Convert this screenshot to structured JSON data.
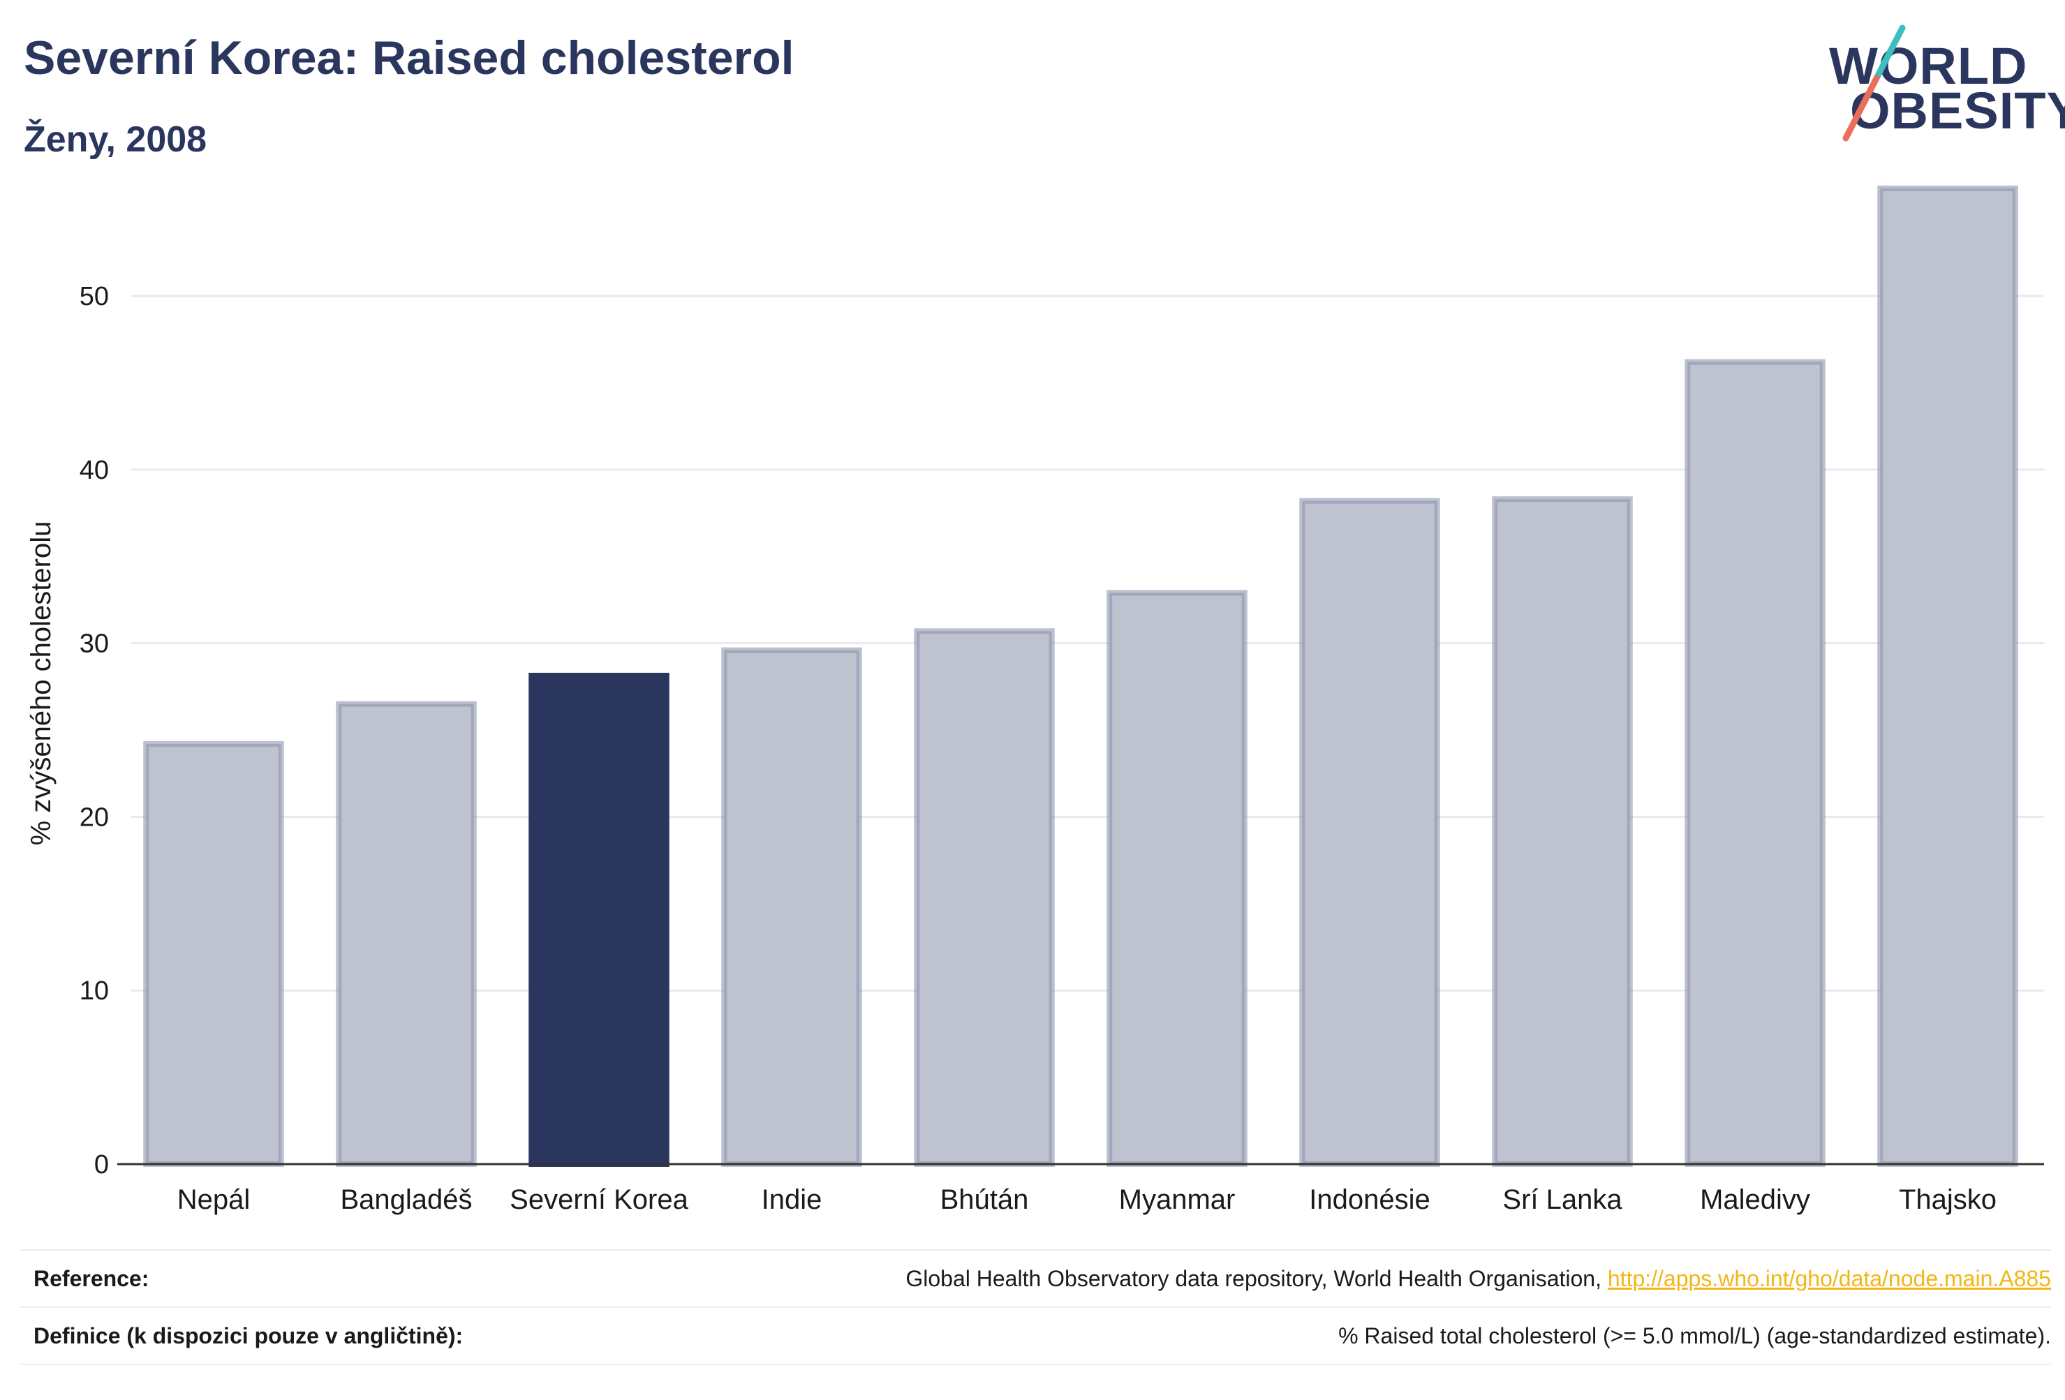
{
  "header": {
    "title": "Severní Korea: Raised cholesterol",
    "subtitle": "Ženy, 2008"
  },
  "logo": {
    "line1": "WORLD",
    "line2": "OBESITY",
    "colors": {
      "text": "#2b365f",
      "slash_top": "#3dbfbf",
      "slash_bottom": "#e96f5a"
    }
  },
  "chart_data": {
    "type": "bar",
    "categories": [
      "Nepál",
      "Bangladéš",
      "Severní Korea",
      "Indie",
      "Bhútán",
      "Myanmar",
      "Indonésie",
      "Srí Lanka",
      "Maledivy",
      "Thajsko"
    ],
    "values": [
      24.2,
      26.5,
      28.3,
      29.6,
      30.7,
      32.9,
      38.2,
      38.3,
      46.2,
      56.2
    ],
    "highlight": "Severní Korea",
    "ylabel": "% zvýšeného cholesterolu",
    "xlabel": "",
    "ylim": [
      0,
      57
    ],
    "yticks": [
      0,
      10,
      20,
      30,
      40,
      50
    ],
    "grid": true,
    "colors": {
      "bar": "#bfc3cf",
      "bar_border": "#8e95ad",
      "highlight": "#2b365f",
      "grid": "#e8eaf0",
      "axis": "#333333"
    }
  },
  "footer": {
    "reference_label": "Reference:",
    "reference_text": "Global Health Observatory data repository, World Health Organisation, ",
    "reference_link": "http://apps.who.int/gho/data/node.main.A885",
    "definition_label": "Definice (k dispozici pouze v angličtině):",
    "definition_text": "% Raised total cholesterol (>= 5.0 mmol/L) (age-standardized estimate)."
  }
}
